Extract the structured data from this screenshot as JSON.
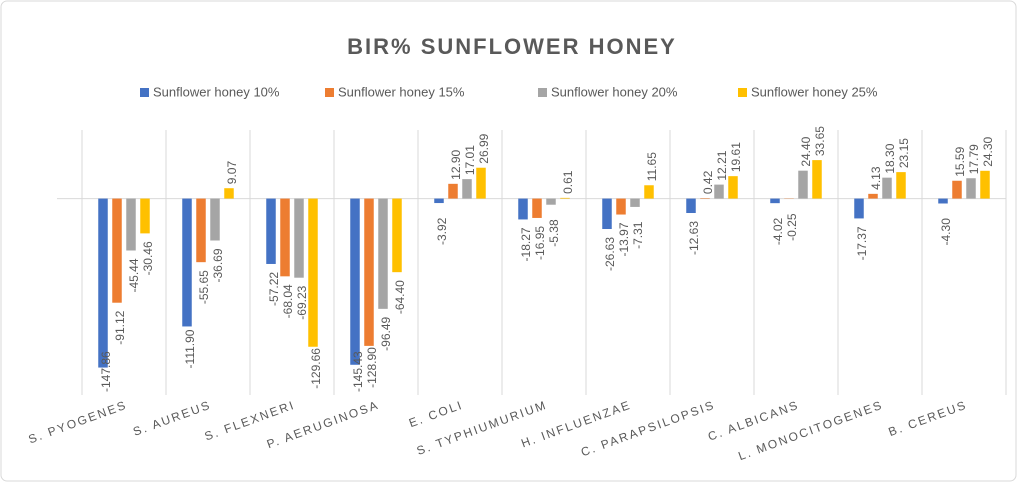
{
  "chart_data": {
    "type": "bar",
    "title": "BIR% SUNFLOWER  HONEY",
    "categories": [
      "S. PYOGENES",
      "S. AUREUS",
      "S. FLEXNERI",
      "P. AERUGINOSA",
      "E. COLI",
      "S. TYPHIUMURIUM",
      "H. INFLUENZAE",
      "C. PARAPSILOPSIS",
      "C. ALBICANS",
      "L. MONOCITOGENES",
      "B. CEREUS"
    ],
    "series": [
      {
        "name": "Sunflower honey  10%",
        "color": "#4472c4",
        "values": [
          -147.86,
          -111.9,
          -57.22,
          -145.43,
          -3.92,
          -18.27,
          -26.63,
          -12.63,
          -4.02,
          -17.37,
          -4.3
        ],
        "value_labels": [
          "-147.86",
          "-111.90",
          "-57.22",
          "-145.43",
          "-3.92",
          "-18.27",
          "-26.63",
          "-12.63",
          "-4.02",
          "-17.37",
          "-4.30"
        ]
      },
      {
        "name": "Sunflower honey  15%",
        "color": "#ed7d31",
        "values": [
          -91.12,
          -55.65,
          -68.04,
          -128.9,
          12.9,
          -16.95,
          -13.97,
          0.42,
          -0.25,
          4.13,
          15.59
        ],
        "value_labels": [
          "-91.12",
          "-55.65",
          "-68.04",
          "-128.90",
          "12.90",
          "-16.95",
          "-13.97",
          "0.42",
          "-0.25",
          "4.13",
          "15.59"
        ]
      },
      {
        "name": "Sunflower honey  20%",
        "color": "#a5a5a5",
        "values": [
          -45.44,
          -36.69,
          -69.23,
          -96.49,
          17.01,
          -5.38,
          -7.31,
          12.21,
          24.4,
          18.3,
          17.79
        ],
        "value_labels": [
          "-45.44",
          "-36.69",
          "-69.23",
          "-96.49",
          "17.01",
          "-5.38",
          "-7.31",
          "12.21",
          "24.40",
          "18.30",
          "17.79"
        ]
      },
      {
        "name": "Sunflower honey  25%",
        "color": "#ffc000",
        "values": [
          -30.46,
          9.07,
          -129.66,
          -64.4,
          26.99,
          0.61,
          11.65,
          19.61,
          33.65,
          23.15,
          24.3
        ],
        "value_labels": [
          "-30.46",
          "9.07",
          "-129.66",
          "-64.40",
          "26.99",
          "0.61",
          "11.65",
          "19.61",
          "33.65",
          "23.15",
          "24.30"
        ]
      }
    ],
    "ylim": [
      -150,
      60
    ]
  }
}
